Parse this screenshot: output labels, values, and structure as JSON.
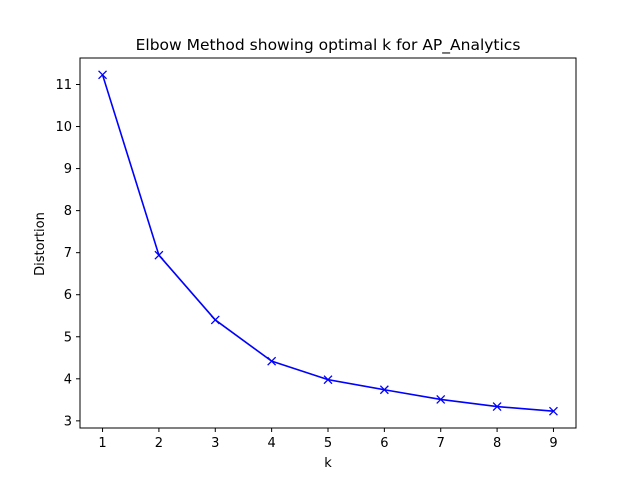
{
  "chart_data": {
    "type": "line",
    "title": "Elbow Method showing optimal k for AP_Analytics",
    "xlabel": "k",
    "ylabel": "Distortion",
    "x": [
      1,
      2,
      3,
      4,
      5,
      6,
      7,
      8,
      9
    ],
    "series": [
      {
        "values": [
          11.23,
          6.94,
          5.4,
          4.42,
          3.98,
          3.74,
          3.51,
          3.34,
          3.23
        ],
        "color": "#0000ff",
        "marker": "x-mark"
      }
    ],
    "xlim": [
      0.6,
      9.4
    ],
    "ylim": [
      2.83,
      11.63
    ],
    "xticks": [
      1,
      2,
      3,
      4,
      5,
      6,
      7,
      8,
      9
    ],
    "yticks": [
      3,
      4,
      5,
      6,
      7,
      8,
      9,
      10,
      11
    ],
    "grid": false,
    "legend": "none"
  }
}
